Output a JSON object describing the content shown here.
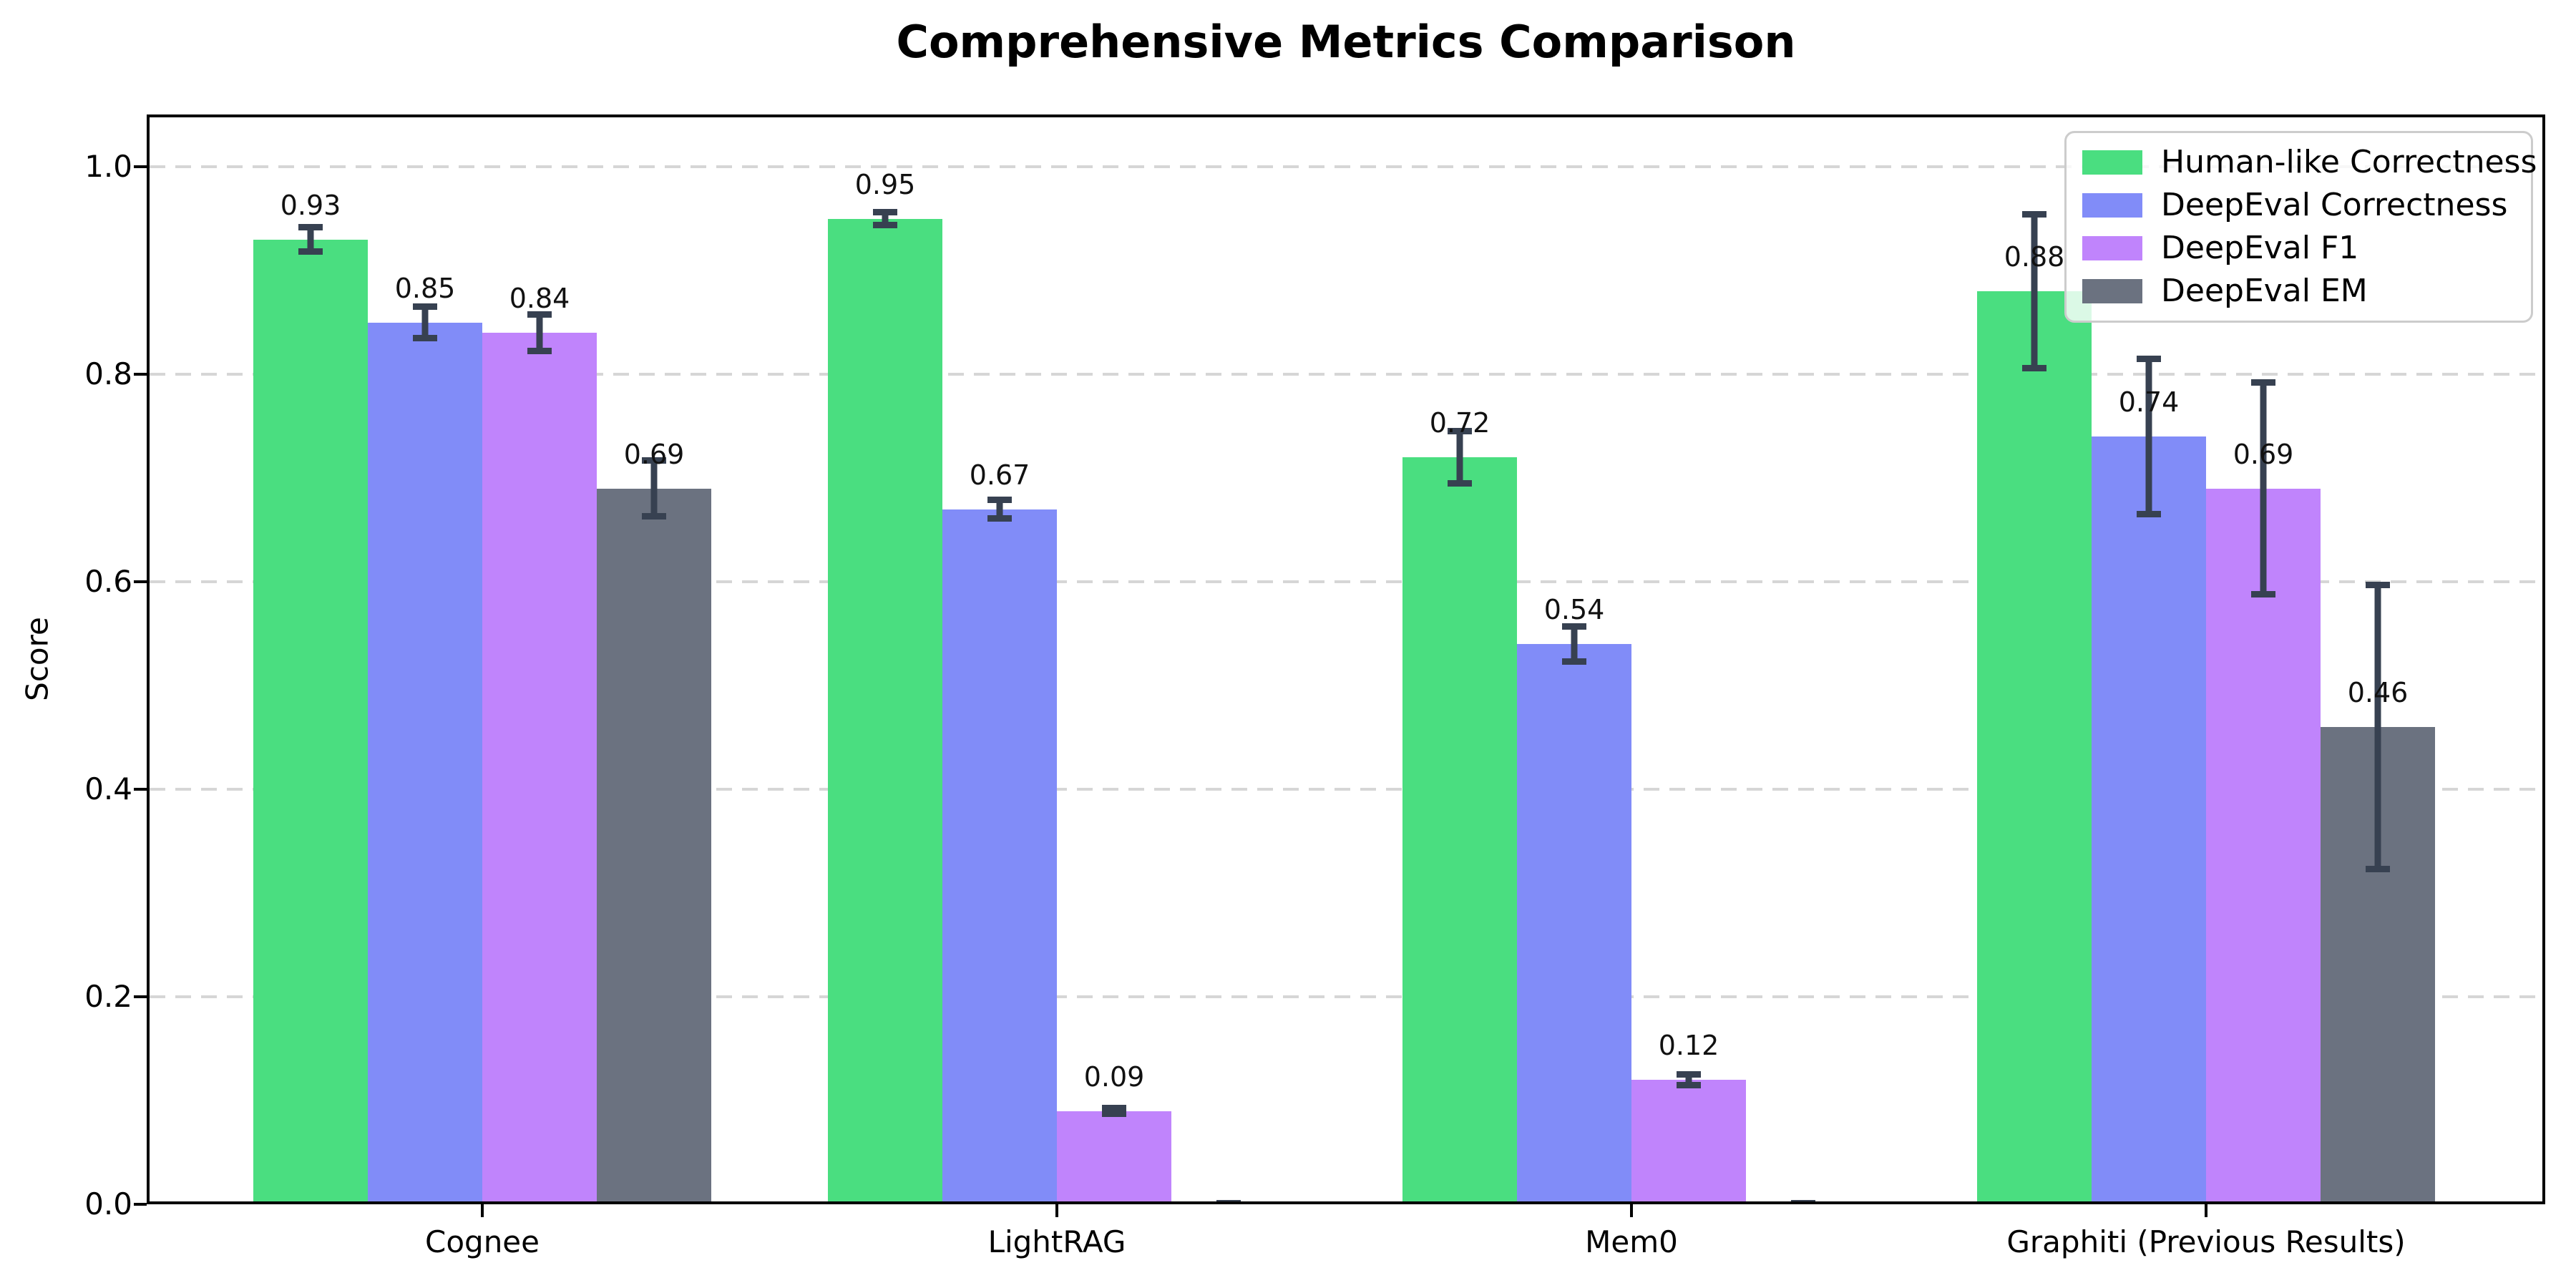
{
  "title": "Comprehensive Metrics Comparison",
  "chart_data": {
    "type": "bar",
    "title": "Comprehensive Metrics Comparison",
    "xlabel": "",
    "ylabel": "Score",
    "ylim": [
      0,
      1.05
    ],
    "grid": "horizontal dashed gridlines at 0.2 intervals",
    "legend_position": "upper right",
    "yticks": [
      {
        "label": "0.0",
        "value": 0.0
      },
      {
        "label": "0.2",
        "value": 0.2
      },
      {
        "label": "0.4",
        "value": 0.4
      },
      {
        "label": "0.6",
        "value": 0.6
      },
      {
        "label": "0.8",
        "value": 0.8
      },
      {
        "label": "1.0",
        "value": 1.0
      }
    ],
    "categories": [
      "Cognee",
      "LightRAG",
      "Mem0",
      "Graphiti (Previous Results)"
    ],
    "series": [
      {
        "name": "Human-like Correctness",
        "color": "#4ade80",
        "values": [
          0.93,
          0.95,
          0.72,
          0.88
        ],
        "errors": [
          0.015,
          0.009,
          0.028,
          0.077
        ],
        "labels": [
          "0.93",
          "0.95",
          "0.72",
          "0.88"
        ]
      },
      {
        "name": "DeepEval Correctness",
        "color": "#818cf8",
        "values": [
          0.85,
          0.67,
          0.54,
          0.74
        ],
        "errors": [
          0.018,
          0.012,
          0.02,
          0.078
        ],
        "labels": [
          "0.85",
          "0.67",
          "0.54",
          "0.74"
        ]
      },
      {
        "name": "DeepEval F1",
        "color": "#c084fc",
        "values": [
          0.84,
          0.09,
          0.12,
          0.69
        ],
        "errors": [
          0.021,
          0.006,
          0.008,
          0.105
        ],
        "labels": [
          "0.84",
          "0.09",
          "0.12",
          "0.69"
        ]
      },
      {
        "name": "DeepEval EM",
        "color": "#6b7280",
        "values": [
          0.69,
          0.0,
          0.0,
          0.46
        ],
        "errors": [
          0.03,
          0.004,
          0.004,
          0.14
        ],
        "labels": [
          "0.69",
          null,
          null,
          "0.46"
        ]
      }
    ]
  },
  "colors": {
    "error_bar": "#374151",
    "gridline": "#d6d6d6",
    "axis": "#000000",
    "legend_border": "#cccccc",
    "background": "#ffffff"
  }
}
